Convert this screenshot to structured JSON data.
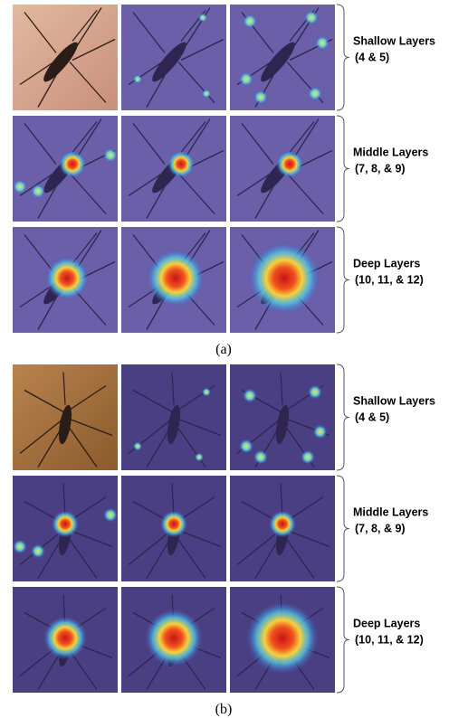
{
  "panels": [
    {
      "label": "(a)",
      "groups": [
        {
          "title": "Shallow Layers",
          "layers": "(4 & 5)"
        },
        {
          "title": "Middle Layers",
          "layers": "(7, 8, & 9)"
        },
        {
          "title": "Deep Layers",
          "layers": "(10, 11, & 12)"
        }
      ]
    },
    {
      "label": "(b)",
      "groups": [
        {
          "title": "Shallow Layers",
          "layers": "(4 & 5)"
        },
        {
          "title": "Middle Layers",
          "layers": "(7, 8, & 9)"
        },
        {
          "title": "Deep Layers",
          "layers": "(10, 11, & 12)"
        }
      ]
    }
  ]
}
